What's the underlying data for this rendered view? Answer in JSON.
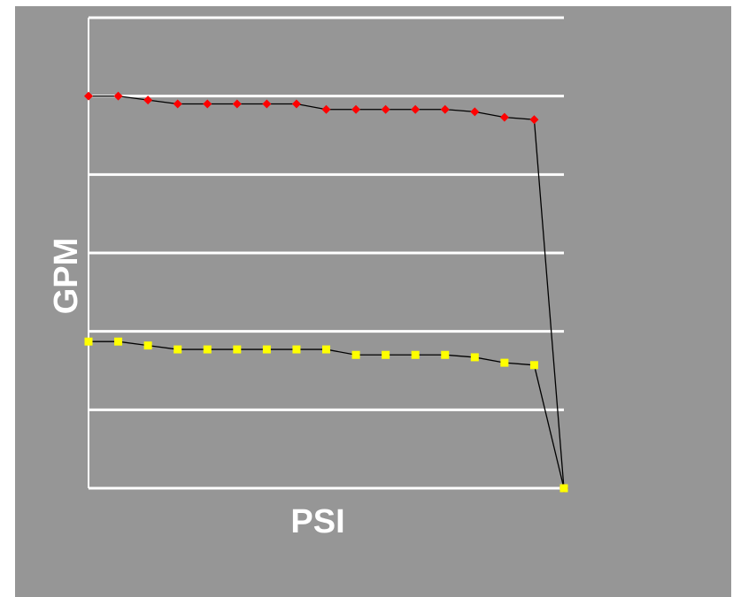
{
  "chart_data": {
    "type": "line",
    "title": "",
    "xlabel": "PSI",
    "ylabel": "GPM",
    "grid": true,
    "legend": "none",
    "xlim": [
      0,
      16
    ],
    "ylim": [
      0,
      6
    ],
    "x": [
      0,
      1,
      2,
      3,
      4,
      5,
      6,
      7,
      8,
      9,
      10,
      11,
      12,
      13,
      14,
      15,
      16
    ],
    "series": [
      {
        "marker": "diamond",
        "color": "#ff0000",
        "values": [
          5.0,
          5.0,
          4.95,
          4.9,
          4.9,
          4.9,
          4.9,
          4.9,
          4.83,
          4.83,
          4.83,
          4.83,
          4.83,
          4.8,
          4.73,
          4.7,
          0
        ]
      },
      {
        "marker": "square",
        "color": "#ffff00",
        "values": [
          1.87,
          1.87,
          1.82,
          1.77,
          1.77,
          1.77,
          1.77,
          1.77,
          1.77,
          1.7,
          1.7,
          1.7,
          1.7,
          1.67,
          1.6,
          1.57,
          0
        ]
      }
    ],
    "colors": {
      "background": "#969696",
      "gridline": "#ffffff",
      "connector": "#000000"
    }
  }
}
